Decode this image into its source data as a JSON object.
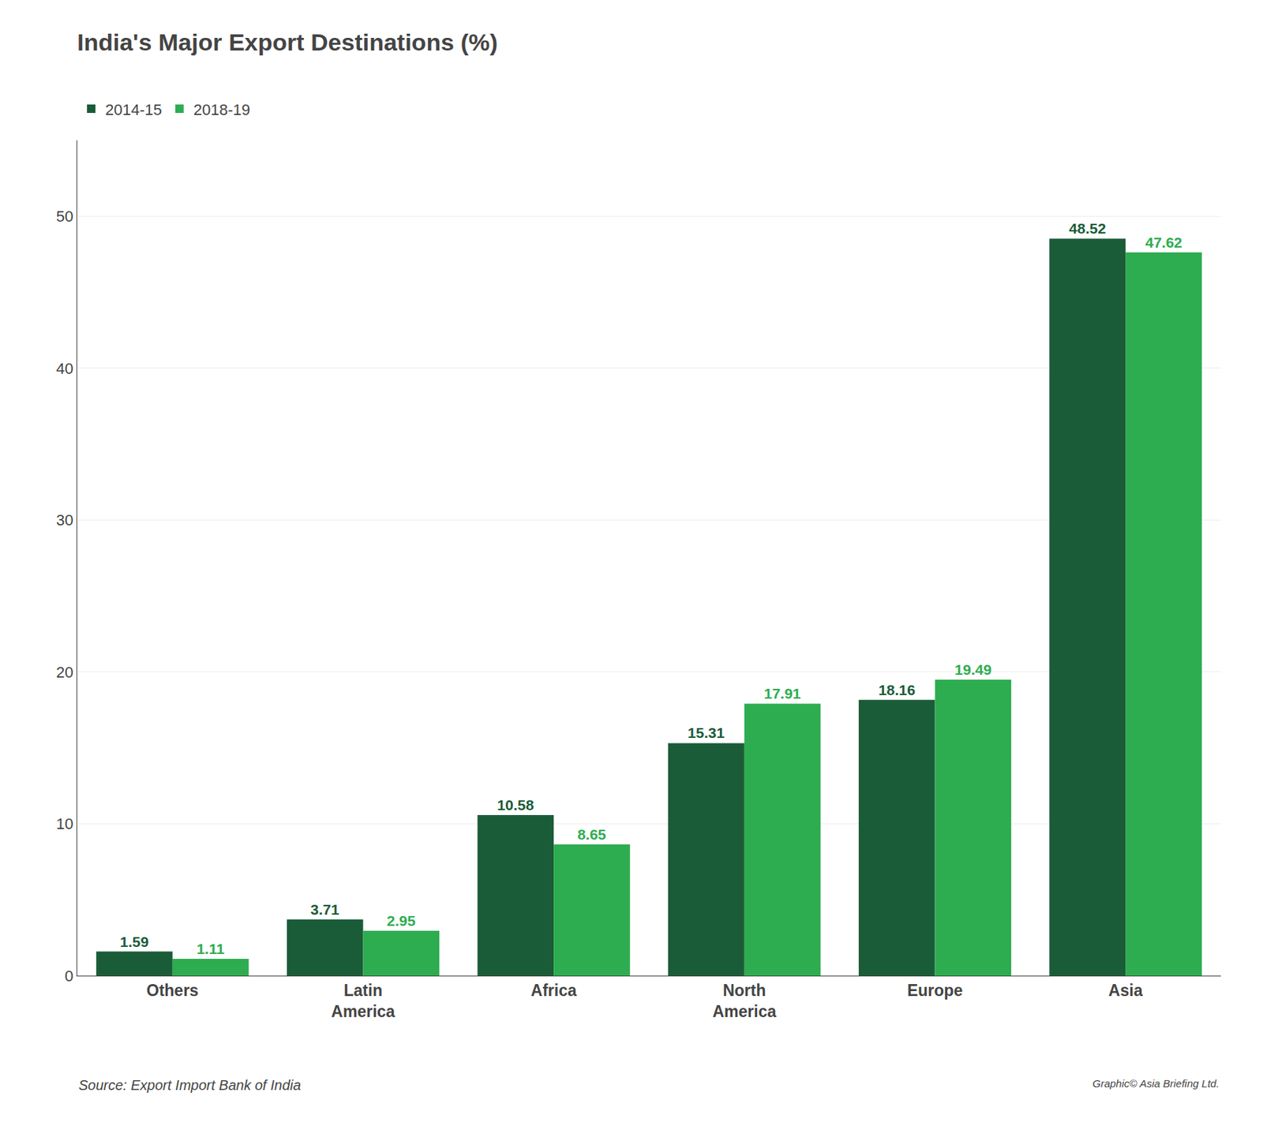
{
  "chart_data": {
    "type": "bar",
    "title": "India's Major Export Destinations (%)",
    "categories": [
      "Others",
      "Latin\nAmerica",
      "Africa",
      "North\nAmerica",
      "Europe",
      "Asia"
    ],
    "series": [
      {
        "name": "2014-15",
        "color": "#1a5c38",
        "values": [
          1.59,
          3.71,
          10.58,
          15.31,
          18.16,
          48.52
        ]
      },
      {
        "name": "2018-19",
        "color": "#2eac50",
        "values": [
          1.11,
          2.95,
          8.65,
          17.91,
          19.49,
          47.62
        ]
      }
    ],
    "ylim": [
      0,
      55
    ],
    "yticks": [
      0,
      10,
      20,
      30,
      40,
      50
    ],
    "grid": true,
    "legend": "top left",
    "data_labels": true,
    "annotations": [
      "Source: Export Import Bank of India",
      "Graphic© Asia Briefing Ltd."
    ]
  }
}
